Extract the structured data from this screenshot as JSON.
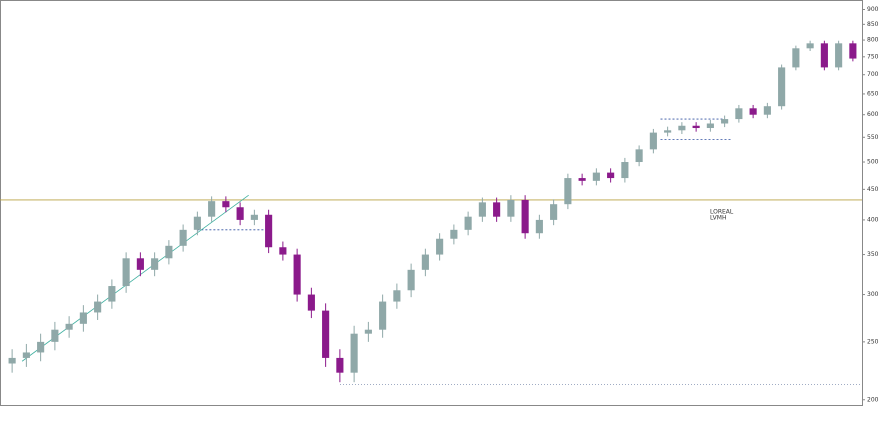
{
  "chart_data": {
    "type": "candlestick",
    "categories": [
      null,
      null,
      null,
      null,
      null,
      null,
      null,
      null,
      null,
      null,
      null,
      null,
      null,
      null,
      null,
      null,
      null,
      null,
      null,
      null,
      null,
      null,
      null,
      null,
      null,
      null,
      null,
      null,
      null,
      null,
      null,
      null,
      null,
      null,
      null,
      null,
      null,
      null,
      null,
      null,
      null,
      null,
      null,
      null,
      null,
      null,
      null,
      null,
      null,
      null,
      null,
      null,
      null,
      null,
      null,
      null,
      null,
      null,
      null,
      null
    ],
    "open": [
      230,
      235,
      240,
      250,
      262,
      268,
      280,
      292,
      310,
      345,
      330,
      345,
      362,
      385,
      405,
      430,
      420,
      400,
      408,
      360,
      350,
      300,
      282,
      235,
      222,
      258,
      262,
      292,
      305,
      330,
      350,
      372,
      385,
      405,
      428,
      405,
      432,
      380,
      400,
      425,
      470,
      465,
      480,
      470,
      500,
      525,
      560,
      565,
      575,
      570,
      580,
      590,
      615,
      600,
      620,
      720,
      775,
      790,
      720,
      790
    ],
    "high": [
      243,
      248,
      258,
      270,
      276,
      288,
      300,
      318,
      353,
      353,
      353,
      370,
      393,
      413,
      438,
      438,
      428,
      416,
      416,
      368,
      358,
      308,
      290,
      243,
      266,
      270,
      300,
      313,
      338,
      358,
      380,
      393,
      413,
      436,
      436,
      440,
      440,
      408,
      433,
      478,
      478,
      488,
      488,
      508,
      533,
      568,
      573,
      583,
      583,
      588,
      598,
      623,
      623,
      628,
      728,
      783,
      798,
      798,
      798,
      798
    ],
    "low": [
      222,
      227,
      232,
      242,
      254,
      260,
      272,
      284,
      302,
      322,
      322,
      337,
      354,
      377,
      397,
      412,
      392,
      392,
      352,
      342,
      292,
      274,
      227,
      214,
      214,
      250,
      254,
      284,
      297,
      322,
      342,
      364,
      377,
      397,
      397,
      397,
      372,
      372,
      392,
      417,
      457,
      457,
      462,
      462,
      492,
      517,
      552,
      557,
      562,
      562,
      572,
      582,
      592,
      592,
      612,
      712,
      767,
      712,
      712,
      737
    ],
    "close": [
      235,
      240,
      250,
      262,
      268,
      280,
      292,
      310,
      345,
      330,
      345,
      362,
      385,
      405,
      430,
      420,
      400,
      408,
      360,
      350,
      300,
      282,
      235,
      222,
      258,
      262,
      292,
      305,
      330,
      350,
      372,
      385,
      405,
      428,
      405,
      432,
      380,
      400,
      425,
      470,
      465,
      480,
      470,
      500,
      525,
      560,
      565,
      575,
      570,
      580,
      590,
      615,
      600,
      620,
      720,
      775,
      790,
      720,
      790,
      745
    ],
    "up_color": "#8fa8a8",
    "down_color": "#8b1a8b",
    "ylim": [
      196,
      930
    ],
    "log_scale": true,
    "yticks": [
      200,
      250,
      300,
      350,
      400,
      450,
      500,
      550,
      600,
      650,
      700,
      750,
      800,
      850,
      900
    ],
    "hlines": [
      {
        "value": 432,
        "color": "#b8a040",
        "style": "solid"
      },
      {
        "value": 212,
        "color": "#8090b0",
        "style": "dotted"
      }
    ],
    "segments": [
      {
        "from": 13,
        "to": 18,
        "value": 385,
        "color": "#3050a0"
      },
      {
        "from": 45.5,
        "to": 50,
        "value": 590,
        "color": "#3050a0"
      },
      {
        "from": 45.5,
        "to": 50.5,
        "value": 545,
        "color": "#3050a0"
      }
    ],
    "trendline": {
      "x": [
        0.7,
        16.6
      ],
      "y": [
        232,
        440
      ],
      "color": "#40b0a0"
    },
    "annotation": [
      "LOREAL",
      "LVMH"
    ]
  }
}
